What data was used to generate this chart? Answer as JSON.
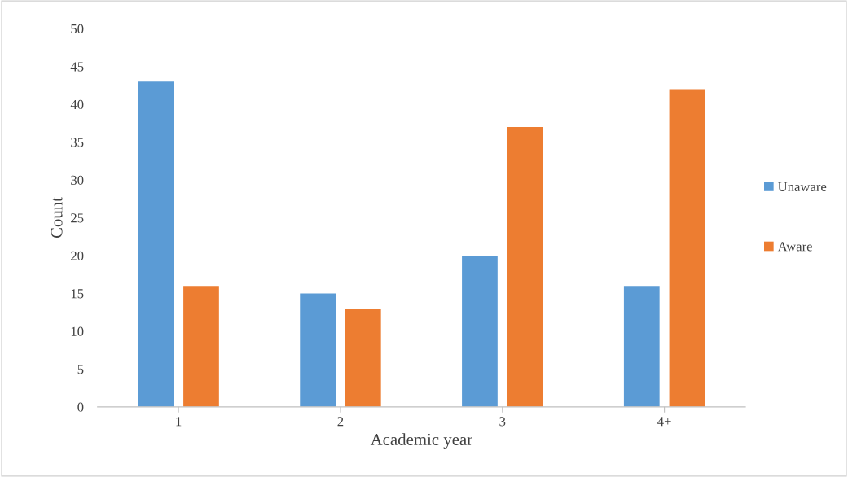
{
  "chart_data": {
    "type": "bar",
    "xlabel": "Academic year",
    "ylabel": "Count",
    "categories": [
      "1",
      "2",
      "3",
      "4+"
    ],
    "series": [
      {
        "name": "Unaware",
        "color": "#5b9bd5",
        "values": [
          43,
          15,
          20,
          16
        ]
      },
      {
        "name": "Aware",
        "color": "#ed7d31",
        "values": [
          16,
          13,
          37,
          42
        ]
      }
    ],
    "ylim": [
      0,
      50
    ],
    "yticks": [
      0,
      5,
      10,
      15,
      20,
      25,
      30,
      35,
      40,
      45,
      50
    ],
    "grid": false,
    "legend": "right"
  }
}
